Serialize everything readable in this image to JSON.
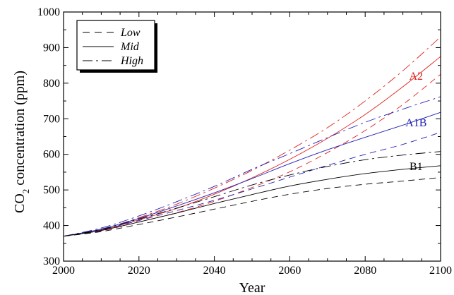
{
  "chart_data": {
    "type": "line",
    "xlabel": "Year",
    "ylabel_main": "CO",
    "ylabel_sub": "2",
    "ylabel_rest": " concentration (ppm)",
    "xlim": [
      2000,
      2100
    ],
    "ylim": [
      300,
      1000
    ],
    "x_ticks": [
      2000,
      2020,
      2040,
      2060,
      2080,
      2100
    ],
    "y_ticks": [
      300,
      400,
      500,
      600,
      700,
      800,
      900,
      1000
    ],
    "x_tick_labels": [
      "2000",
      "2020",
      "2040",
      "2060",
      "2080",
      "2100"
    ],
    "y_tick_labels": [
      "300",
      "400",
      "500",
      "600",
      "700",
      "800",
      "900",
      "1000"
    ],
    "grid": false,
    "legend": {
      "position": "top-left",
      "entries": [
        {
          "label": "Low",
          "style": "dashed"
        },
        {
          "label": "Mid",
          "style": "solid"
        },
        {
          "label": "High",
          "style": "dashdot"
        }
      ]
    },
    "scenario_labels": [
      {
        "text": "A2",
        "color": "#e0201c",
        "x": 2093.5,
        "y": 822
      },
      {
        "text": "A1B",
        "color": "#1f1fb5",
        "x": 2093.5,
        "y": 691
      },
      {
        "text": "B1",
        "color": "#000000",
        "x": 2093.5,
        "y": 568
      }
    ],
    "x": [
      2000,
      2010,
      2020,
      2030,
      2040,
      2050,
      2060,
      2070,
      2080,
      2090,
      2100
    ],
    "series": [
      {
        "scenario": "A2",
        "variant": "Low",
        "style": "dashed",
        "color": "#e0201c",
        "values": [
          370,
          385,
          410,
          436,
          468,
          507,
          551,
          605,
          667,
          740,
          825
        ]
      },
      {
        "scenario": "A2",
        "variant": "Mid",
        "style": "solid",
        "color": "#e0201c",
        "values": [
          370,
          387,
          416,
          448,
          488,
          534,
          586,
          645,
          712,
          790,
          875
        ]
      },
      {
        "scenario": "A2",
        "variant": "High",
        "style": "dashdot",
        "color": "#e0201c",
        "values": [
          370,
          389,
          422,
          460,
          505,
          555,
          612,
          675,
          750,
          835,
          930
        ]
      },
      {
        "scenario": "A1B",
        "variant": "Low",
        "style": "dashed",
        "color": "#1f1fb5",
        "values": [
          370,
          388,
          414,
          442,
          471,
          503,
          536,
          569,
          600,
          628,
          662
        ]
      },
      {
        "scenario": "A1B",
        "variant": "Mid",
        "style": "solid",
        "color": "#1f1fb5",
        "values": [
          370,
          390,
          420,
          455,
          492,
          532,
          574,
          613,
          648,
          682,
          718
        ]
      },
      {
        "scenario": "A1B",
        "variant": "High",
        "style": "dashdot",
        "color": "#1f1fb5",
        "values": [
          370,
          393,
          427,
          467,
          510,
          558,
          602,
          647,
          690,
          727,
          762
        ]
      },
      {
        "scenario": "B1",
        "variant": "Low",
        "style": "dashed",
        "color": "#000000",
        "values": [
          370,
          383,
          403,
          424,
          446,
          468,
          488,
          504,
          516,
          525,
          535
        ]
      },
      {
        "scenario": "B1",
        "variant": "Mid",
        "style": "solid",
        "color": "#000000",
        "values": [
          370,
          386,
          410,
          435,
          462,
          487,
          511,
          530,
          546,
          558,
          568
        ]
      },
      {
        "scenario": "B1",
        "variant": "High",
        "style": "dashdot",
        "color": "#000000",
        "values": [
          370,
          389,
          418,
          449,
          481,
          514,
          542,
          566,
          585,
          598,
          608
        ]
      }
    ]
  }
}
